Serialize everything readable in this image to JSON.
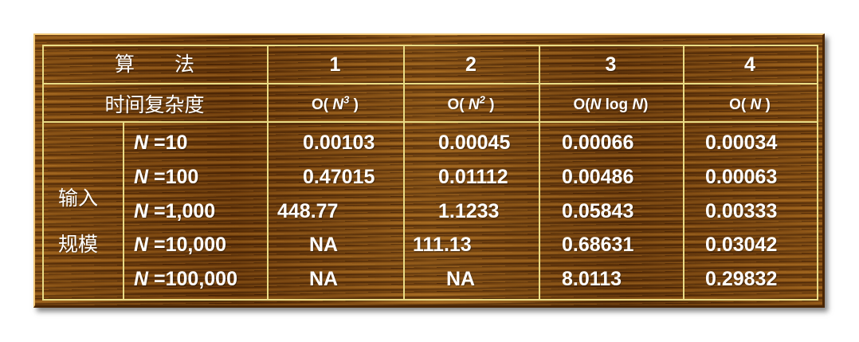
{
  "header": {
    "algorithm_label": "算　　法",
    "columns": [
      "1",
      "2",
      "3",
      "4"
    ]
  },
  "complexity": {
    "label": "时间复杂度",
    "c1": {
      "pre": "O( ",
      "var": "N",
      "sup": "3",
      "post": " )"
    },
    "c2": {
      "pre": "O( ",
      "var": "N",
      "sup": "2",
      "post": " )"
    },
    "c3": {
      "pre": "O(",
      "var": "N",
      "mid": " log ",
      "var2": "N",
      "post": ")"
    },
    "c4": {
      "pre": "O( ",
      "var": "N",
      "post": " )"
    }
  },
  "input_size_label_1": "输入",
  "input_size_label_2": "规模",
  "rows": [
    {
      "n_var": "N",
      "n_value": " =10",
      "values": [
        "0.00103",
        "0.00045",
        "0.00066",
        "0.00034"
      ]
    },
    {
      "n_var": "N",
      "n_value": " =100",
      "values": [
        "0.47015",
        "0.01112",
        "0.00486",
        "0.00063"
      ]
    },
    {
      "n_var": "N",
      "n_value": " =1,000",
      "values": [
        "448.77",
        "1.1233",
        "0.05843",
        "0.00333"
      ]
    },
    {
      "n_var": "N",
      "n_value": " =10,000",
      "values": [
        "NA",
        "111.13",
        "0.68631",
        "0.03042"
      ]
    },
    {
      "n_var": "N",
      "n_value": " =100,000",
      "values": [
        "NA",
        "NA",
        "8.0113",
        "0.29832"
      ]
    }
  ],
  "colors": {
    "grid_lines": "#e9dc86",
    "text": "#ffffff",
    "wood": "#7a4510"
  }
}
